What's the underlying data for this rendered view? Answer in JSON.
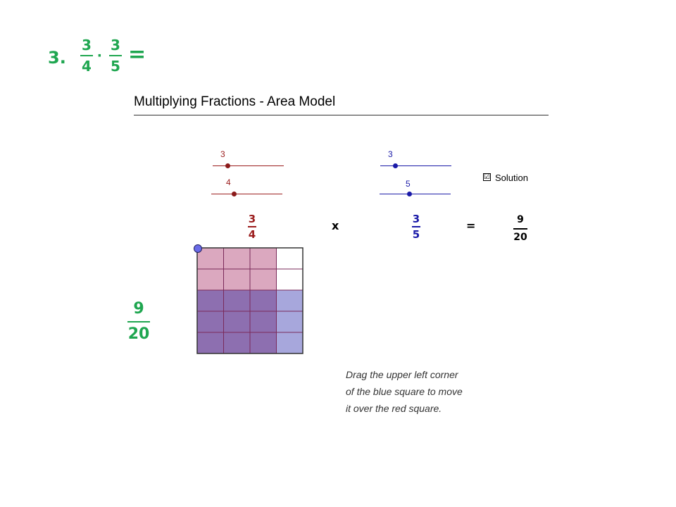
{
  "problem": {
    "number": "3.",
    "left_num": "3",
    "left_den": "4",
    "dot": "·",
    "right_num": "3",
    "right_den": "5",
    "equals": "="
  },
  "applet": {
    "title": "Multiplying Fractions - Area Model",
    "red_slider_top": "3",
    "red_slider_bottom": "4",
    "blue_slider_top": "3",
    "blue_slider_bottom": "5",
    "solution_checked": "☑",
    "solution_label": "Solution",
    "red_fraction": {
      "num": "3",
      "den": "4"
    },
    "times": "x",
    "blue_fraction": {
      "num": "3",
      "den": "5"
    },
    "equals": "=",
    "result": {
      "num": "9",
      "den": "20"
    },
    "instructions": [
      "Drag the upper left corner",
      "of the blue square to move",
      "it over the red square."
    ],
    "grid": {
      "columns": 4,
      "rows": 5,
      "red_columns": 3,
      "red_rows": 5,
      "blue_columns": 4,
      "blue_rows_from_bottom": 3
    }
  },
  "answer": {
    "num": "9",
    "den": "20"
  },
  "colors": {
    "green": "#1fa650",
    "red": "#9b1c1c",
    "blue": "#1a1aa8",
    "red_fill": "#dba8bf",
    "overlap_fill": "#8d6fb0",
    "blue_fill": "#a7a7dc"
  }
}
